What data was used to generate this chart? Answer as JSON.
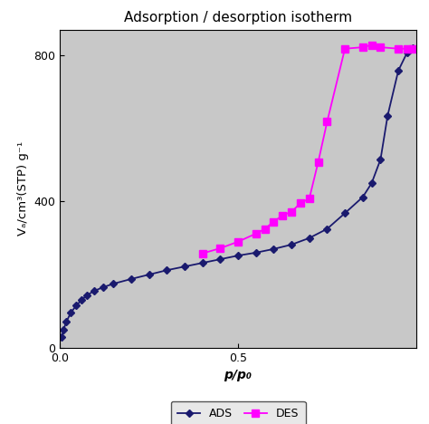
{
  "title": "Adsorption / desorption isotherm",
  "xlabel": "p/p₀",
  "ylabel": "Vₐ/cm³(STP) g⁻¹",
  "background_color": "#c8c8c8",
  "ads_x": [
    0.005,
    0.01,
    0.018,
    0.03,
    0.045,
    0.06,
    0.075,
    0.095,
    0.12,
    0.15,
    0.2,
    0.25,
    0.3,
    0.35,
    0.4,
    0.45,
    0.5,
    0.55,
    0.6,
    0.65,
    0.7,
    0.75,
    0.8,
    0.85,
    0.875,
    0.9,
    0.92,
    0.95,
    0.975,
    0.99
  ],
  "ads_y": [
    28,
    50,
    72,
    95,
    115,
    130,
    143,
    155,
    165,
    175,
    188,
    200,
    212,
    222,
    232,
    242,
    252,
    260,
    270,
    282,
    300,
    325,
    368,
    412,
    450,
    515,
    635,
    758,
    808,
    820
  ],
  "des_x": [
    0.4,
    0.45,
    0.5,
    0.55,
    0.575,
    0.6,
    0.625,
    0.65,
    0.675,
    0.7,
    0.725,
    0.75,
    0.8,
    0.85,
    0.875,
    0.9,
    0.95,
    0.975,
    0.99
  ],
  "des_y": [
    258,
    272,
    290,
    312,
    325,
    345,
    362,
    372,
    395,
    408,
    508,
    618,
    818,
    822,
    828,
    822,
    818,
    818,
    818
  ],
  "ads_color": "#1a1a6e",
  "des_color": "#ff00ff",
  "ylim": [
    0,
    870
  ],
  "xlim": [
    0,
    1.0
  ],
  "yticks": [
    0,
    400,
    800
  ],
  "xticks": [
    0.0,
    0.5
  ],
  "title_fontsize": 11,
  "label_fontsize": 10,
  "tick_fontsize": 9,
  "legend_labels": [
    "ADS",
    "DES"
  ]
}
